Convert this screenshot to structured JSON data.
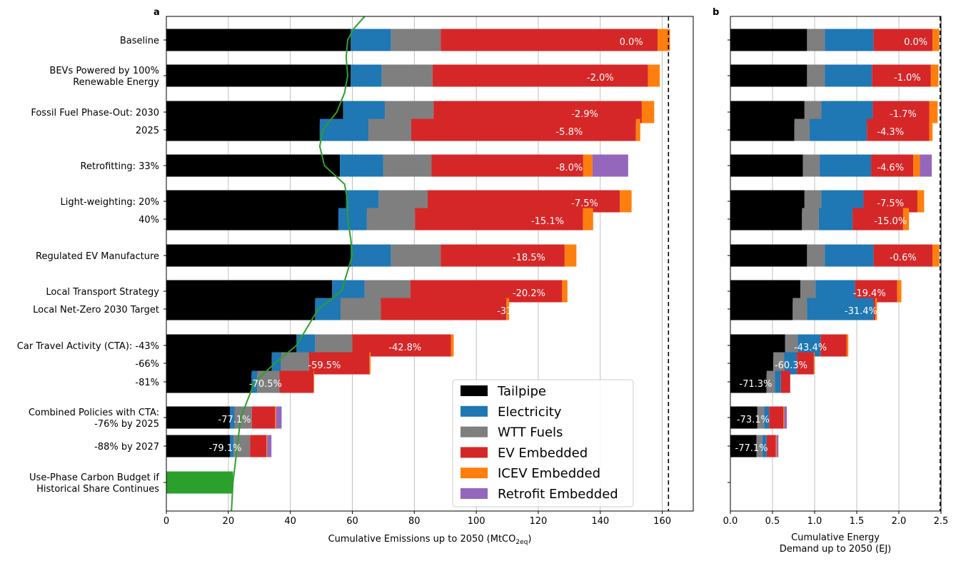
{
  "colors": {
    "Tailpipe": "#000000",
    "Electricity": "#1f77b4",
    "WTT Fuels": "#7f7f7f",
    "EV Embedded": "#d62728",
    "ICEV Embedded": "#ff7f0e",
    "Retrofit Embedded": "#9467bd",
    "budget": "#2ca02c"
  },
  "chart_data": [
    {
      "panel": "a",
      "type": "bar",
      "orientation": "horizontal",
      "stacked": true,
      "xlabel": "Cumulative Emissions up to 2050 (MtCO",
      "xlabel_sub": "2eq",
      "xlabel_end": ")",
      "xlim": [
        0,
        170
      ],
      "xticks": [
        0,
        20,
        40,
        60,
        80,
        100,
        120,
        140,
        160
      ],
      "grid": "vertical",
      "reference_line": 162,
      "categories": [
        "Baseline",
        "BEVs Powered by 100% Renewable Energy",
        "Fossil Fuel Phase-Out: 2030",
        "2025",
        "Retrofitting: 33%",
        "Light-weighting: 20%",
        "40%",
        "Regulated EV Manufacture",
        "Local Transport Strategy",
        "Local Net-Zero 2030 Target",
        "Car Travel Activity (CTA): -43%",
        "-66%",
        "-81%",
        "Combined Policies with CTA: -76% by 2025",
        "-88% by 2027",
        "Use-Phase Carbon Budget if Historical Share Continues"
      ],
      "tick_labels": [
        [
          "Baseline"
        ],
        [
          "BEVs Powered by 100%",
          "Renewable Energy"
        ],
        [
          "Fossil Fuel Phase-Out: 2030"
        ],
        [
          "2025"
        ],
        [
          "Retrofitting: 33%"
        ],
        [
          "Light-weighting: 20%"
        ],
        [
          "40%"
        ],
        [
          "Regulated EV Manufacture"
        ],
        [
          "Local Transport Strategy"
        ],
        [
          "Local Net-Zero 2030 Target"
        ],
        [
          "Car Travel Activity (CTA): -43%"
        ],
        [
          "-66%"
        ],
        [
          "-81%"
        ],
        [
          "Combined Policies with CTA:",
          "-76% by 2025"
        ],
        [
          "-88% by 2027"
        ],
        [
          "Use-Phase Carbon Budget if",
          "Historical Share Continues"
        ]
      ],
      "series": [
        {
          "name": "Tailpipe",
          "values": [
            59.5,
            59.5,
            57,
            49.5,
            56,
            58,
            55.5,
            59.5,
            53.5,
            48,
            42,
            34,
            27.5,
            20.5,
            20.5,
            null
          ]
        },
        {
          "name": "Electricity",
          "values": [
            13,
            10,
            13.5,
            15.7,
            14,
            10.5,
            9.2,
            13,
            10.5,
            8.2,
            6,
            3,
            1.8,
            1.5,
            1.2,
            null
          ]
        },
        {
          "name": "WTT Fuels",
          "values": [
            16,
            16.4,
            15.7,
            13.8,
            15.5,
            15.8,
            15.5,
            16,
            14.7,
            13,
            12,
            9,
            7.2,
            5.6,
            5.3,
            null
          ]
        },
        {
          "name": "EV Embedded",
          "values": [
            70,
            69.5,
            67.2,
            72.5,
            49,
            62,
            54.2,
            40,
            49,
            40.5,
            31.8,
            19.5,
            11,
            7.5,
            5.3,
            null
          ]
        },
        {
          "name": "ICEV Embedded",
          "values": [
            4,
            3.8,
            4,
            1.4,
            3,
            3.8,
            3.3,
            3.8,
            1.7,
            0.9,
            0.9,
            0.4,
            0.2,
            0.3,
            0.2,
            null
          ]
        },
        {
          "name": "Retrofit Embedded",
          "values": [
            0,
            0,
            0,
            0,
            11.5,
            0,
            0,
            0,
            0,
            0,
            0,
            0,
            0,
            1.8,
            1.4,
            null
          ]
        }
      ],
      "budget_value": 21.5,
      "data_labels": [
        "0.0%",
        "-2.0%",
        "-2.9%",
        "-5.8%",
        "-8.0%",
        "-7.5%",
        "-15.1%",
        "-18.5%",
        "-20.2%",
        "-31.7%",
        "-42.8%",
        "-59.5%",
        "-70.5%",
        "-77.1%",
        "-79.1%",
        ""
      ],
      "label_x": [
        150,
        140,
        135,
        130,
        130,
        135,
        123,
        117,
        117,
        112,
        77,
        51,
        32,
        22,
        19,
        null
      ],
      "curve_x": [
        64,
        60.5,
        58.5,
        58,
        58.5,
        57.5,
        55,
        50.5,
        49.5,
        51,
        57.5,
        58.5,
        58.5,
        59.5,
        60,
        56.5,
        49,
        42,
        35,
        28.5,
        24,
        21.5,
        21
      ]
    },
    {
      "panel": "b",
      "type": "bar",
      "orientation": "horizontal",
      "stacked": true,
      "xlabel_lines": [
        "Cumulative Energy",
        "Demand up to 2050 (EJ)"
      ],
      "xlim": [
        0,
        2.5
      ],
      "xticks": [
        "0.0",
        "0.5",
        "1.0",
        "1.5",
        "2.0",
        "2.5"
      ],
      "grid": "vertical",
      "reference_line": 2.49,
      "series": [
        {
          "name": "Tailpipe",
          "values": [
            0.91,
            0.91,
            0.88,
            0.76,
            0.86,
            0.88,
            0.85,
            0.91,
            0.83,
            0.74,
            0.65,
            0.51,
            0.43,
            0.32,
            0.31
          ]
        },
        {
          "name": "WTT Fuels",
          "values": [
            0.21,
            0.21,
            0.2,
            0.18,
            0.2,
            0.2,
            0.2,
            0.21,
            0.18,
            0.17,
            0.15,
            0.13,
            0.1,
            0.08,
            0.07
          ]
        },
        {
          "name": "Electricity",
          "values": [
            0.58,
            0.56,
            0.61,
            0.68,
            0.61,
            0.5,
            0.4,
            0.58,
            0.47,
            0.79,
            0.27,
            0.15,
            0.07,
            0.06,
            0.05
          ]
        },
        {
          "name": "EV Embedded",
          "values": [
            0.7,
            0.7,
            0.67,
            0.74,
            0.5,
            0.64,
            0.6,
            0.7,
            0.5,
            0.02,
            0.31,
            0.2,
            0.11,
            0.17,
            0.11
          ]
        },
        {
          "name": "ICEV Embedded",
          "values": [
            0.08,
            0.09,
            0.1,
            0.04,
            0.08,
            0.08,
            0.07,
            0.08,
            0.05,
            0.02,
            0.02,
            0.01,
            0.0,
            0.01,
            0.01
          ]
        },
        {
          "name": "Retrofit Embedded",
          "values": [
            0,
            0,
            0,
            0,
            0.14,
            0,
            0,
            0,
            0,
            0,
            0,
            0,
            0,
            0.03,
            0.02
          ]
        }
      ],
      "data_labels": [
        "0.0%",
        "-1.0%",
        "-1.7%",
        "-4.3%",
        "-4.6%",
        "-7.5%",
        "-15.0%",
        "-0.6%",
        "-19.4%",
        "-31.4%",
        "-43.4%",
        "-60.3%",
        "-71.3%",
        "-73.1%",
        "-77.1%"
      ],
      "label_x": [
        2.2,
        2.1,
        2.05,
        1.9,
        1.9,
        1.9,
        1.9,
        2.05,
        1.65,
        1.55,
        0.95,
        0.72,
        0.3,
        0.27,
        0.25
      ]
    }
  ],
  "panel_letters": {
    "a": "a",
    "b": "b"
  },
  "legend": [
    "Tailpipe",
    "Electricity",
    "WTT Fuels",
    "EV Embedded",
    "ICEV Embedded",
    "Retrofit Embedded"
  ]
}
